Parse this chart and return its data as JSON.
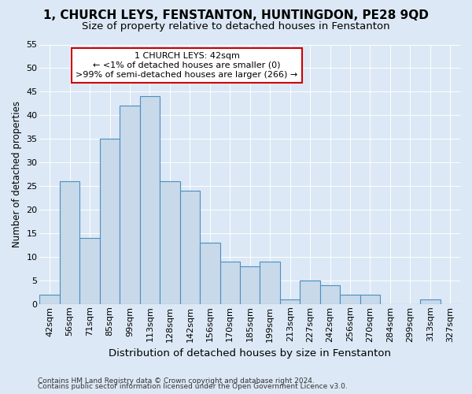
{
  "title_line1": "1, CHURCH LEYS, FENSTANTON, HUNTINGDON, PE28 9QD",
  "title_line2": "Size of property relative to detached houses in Fenstanton",
  "xlabel": "Distribution of detached houses by size in Fenstanton",
  "ylabel": "Number of detached properties",
  "categories": [
    "42sqm",
    "56sqm",
    "71sqm",
    "85sqm",
    "99sqm",
    "113sqm",
    "128sqm",
    "142sqm",
    "156sqm",
    "170sqm",
    "185sqm",
    "199sqm",
    "213sqm",
    "227sqm",
    "242sqm",
    "256sqm",
    "270sqm",
    "284sqm",
    "299sqm",
    "313sqm",
    "327sqm"
  ],
  "values": [
    2,
    26,
    14,
    35,
    42,
    44,
    26,
    24,
    13,
    9,
    8,
    9,
    1,
    5,
    4,
    2,
    2,
    0,
    0,
    1,
    0
  ],
  "bar_color": "#c8d9ea",
  "bar_edge_color": "#4a8fbf",
  "background_color": "#dce8f5",
  "annotation_line1": "1 CHURCH LEYS: 42sqm",
  "annotation_line2": "← <1% of detached houses are smaller (0)",
  "annotation_line3": ">99% of semi-detached houses are larger (266) →",
  "annotation_box_color": "#ffffff",
  "annotation_box_edge_color": "#cc0000",
  "ylim": [
    0,
    55
  ],
  "yticks": [
    0,
    5,
    10,
    15,
    20,
    25,
    30,
    35,
    40,
    45,
    50,
    55
  ],
  "footer_line1": "Contains HM Land Registry data © Crown copyright and database right 2024.",
  "footer_line2": "Contains public sector information licensed under the Open Government Licence v3.0.",
  "title1_fontsize": 11,
  "title2_fontsize": 9.5,
  "xlabel_fontsize": 9.5,
  "ylabel_fontsize": 8.5,
  "tick_fontsize": 8,
  "ann_fontsize": 8,
  "footer_fontsize": 6.5
}
